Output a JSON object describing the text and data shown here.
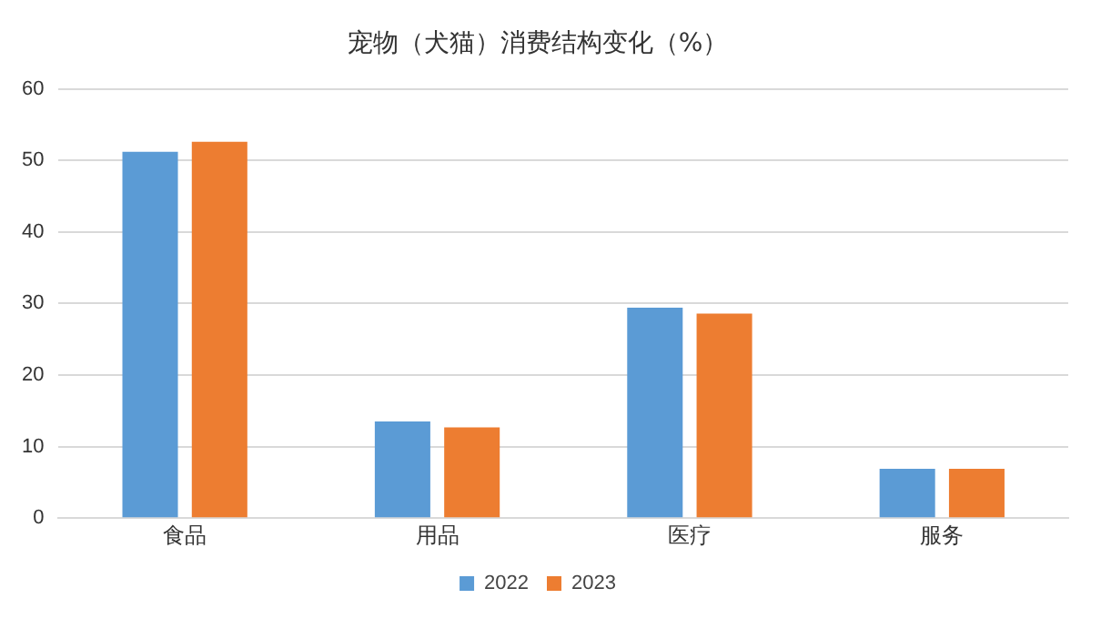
{
  "chart_data": {
    "type": "bar",
    "title": "宠物（犬猫）消费结构变化（%）",
    "categories": [
      "食品",
      "用品",
      "医疗",
      "服务"
    ],
    "series": [
      {
        "name": "2022",
        "color": "#5b9bd5",
        "values": [
          51.2,
          13.5,
          29.4,
          6.9
        ]
      },
      {
        "name": "2023",
        "color": "#ed7d31",
        "values": [
          52.6,
          12.7,
          28.6,
          6.9
        ]
      }
    ],
    "ylim": [
      0,
      60
    ],
    "yticks": [
      0,
      10,
      20,
      30,
      40,
      50,
      60
    ],
    "grid": "y",
    "legend": "bottom"
  }
}
